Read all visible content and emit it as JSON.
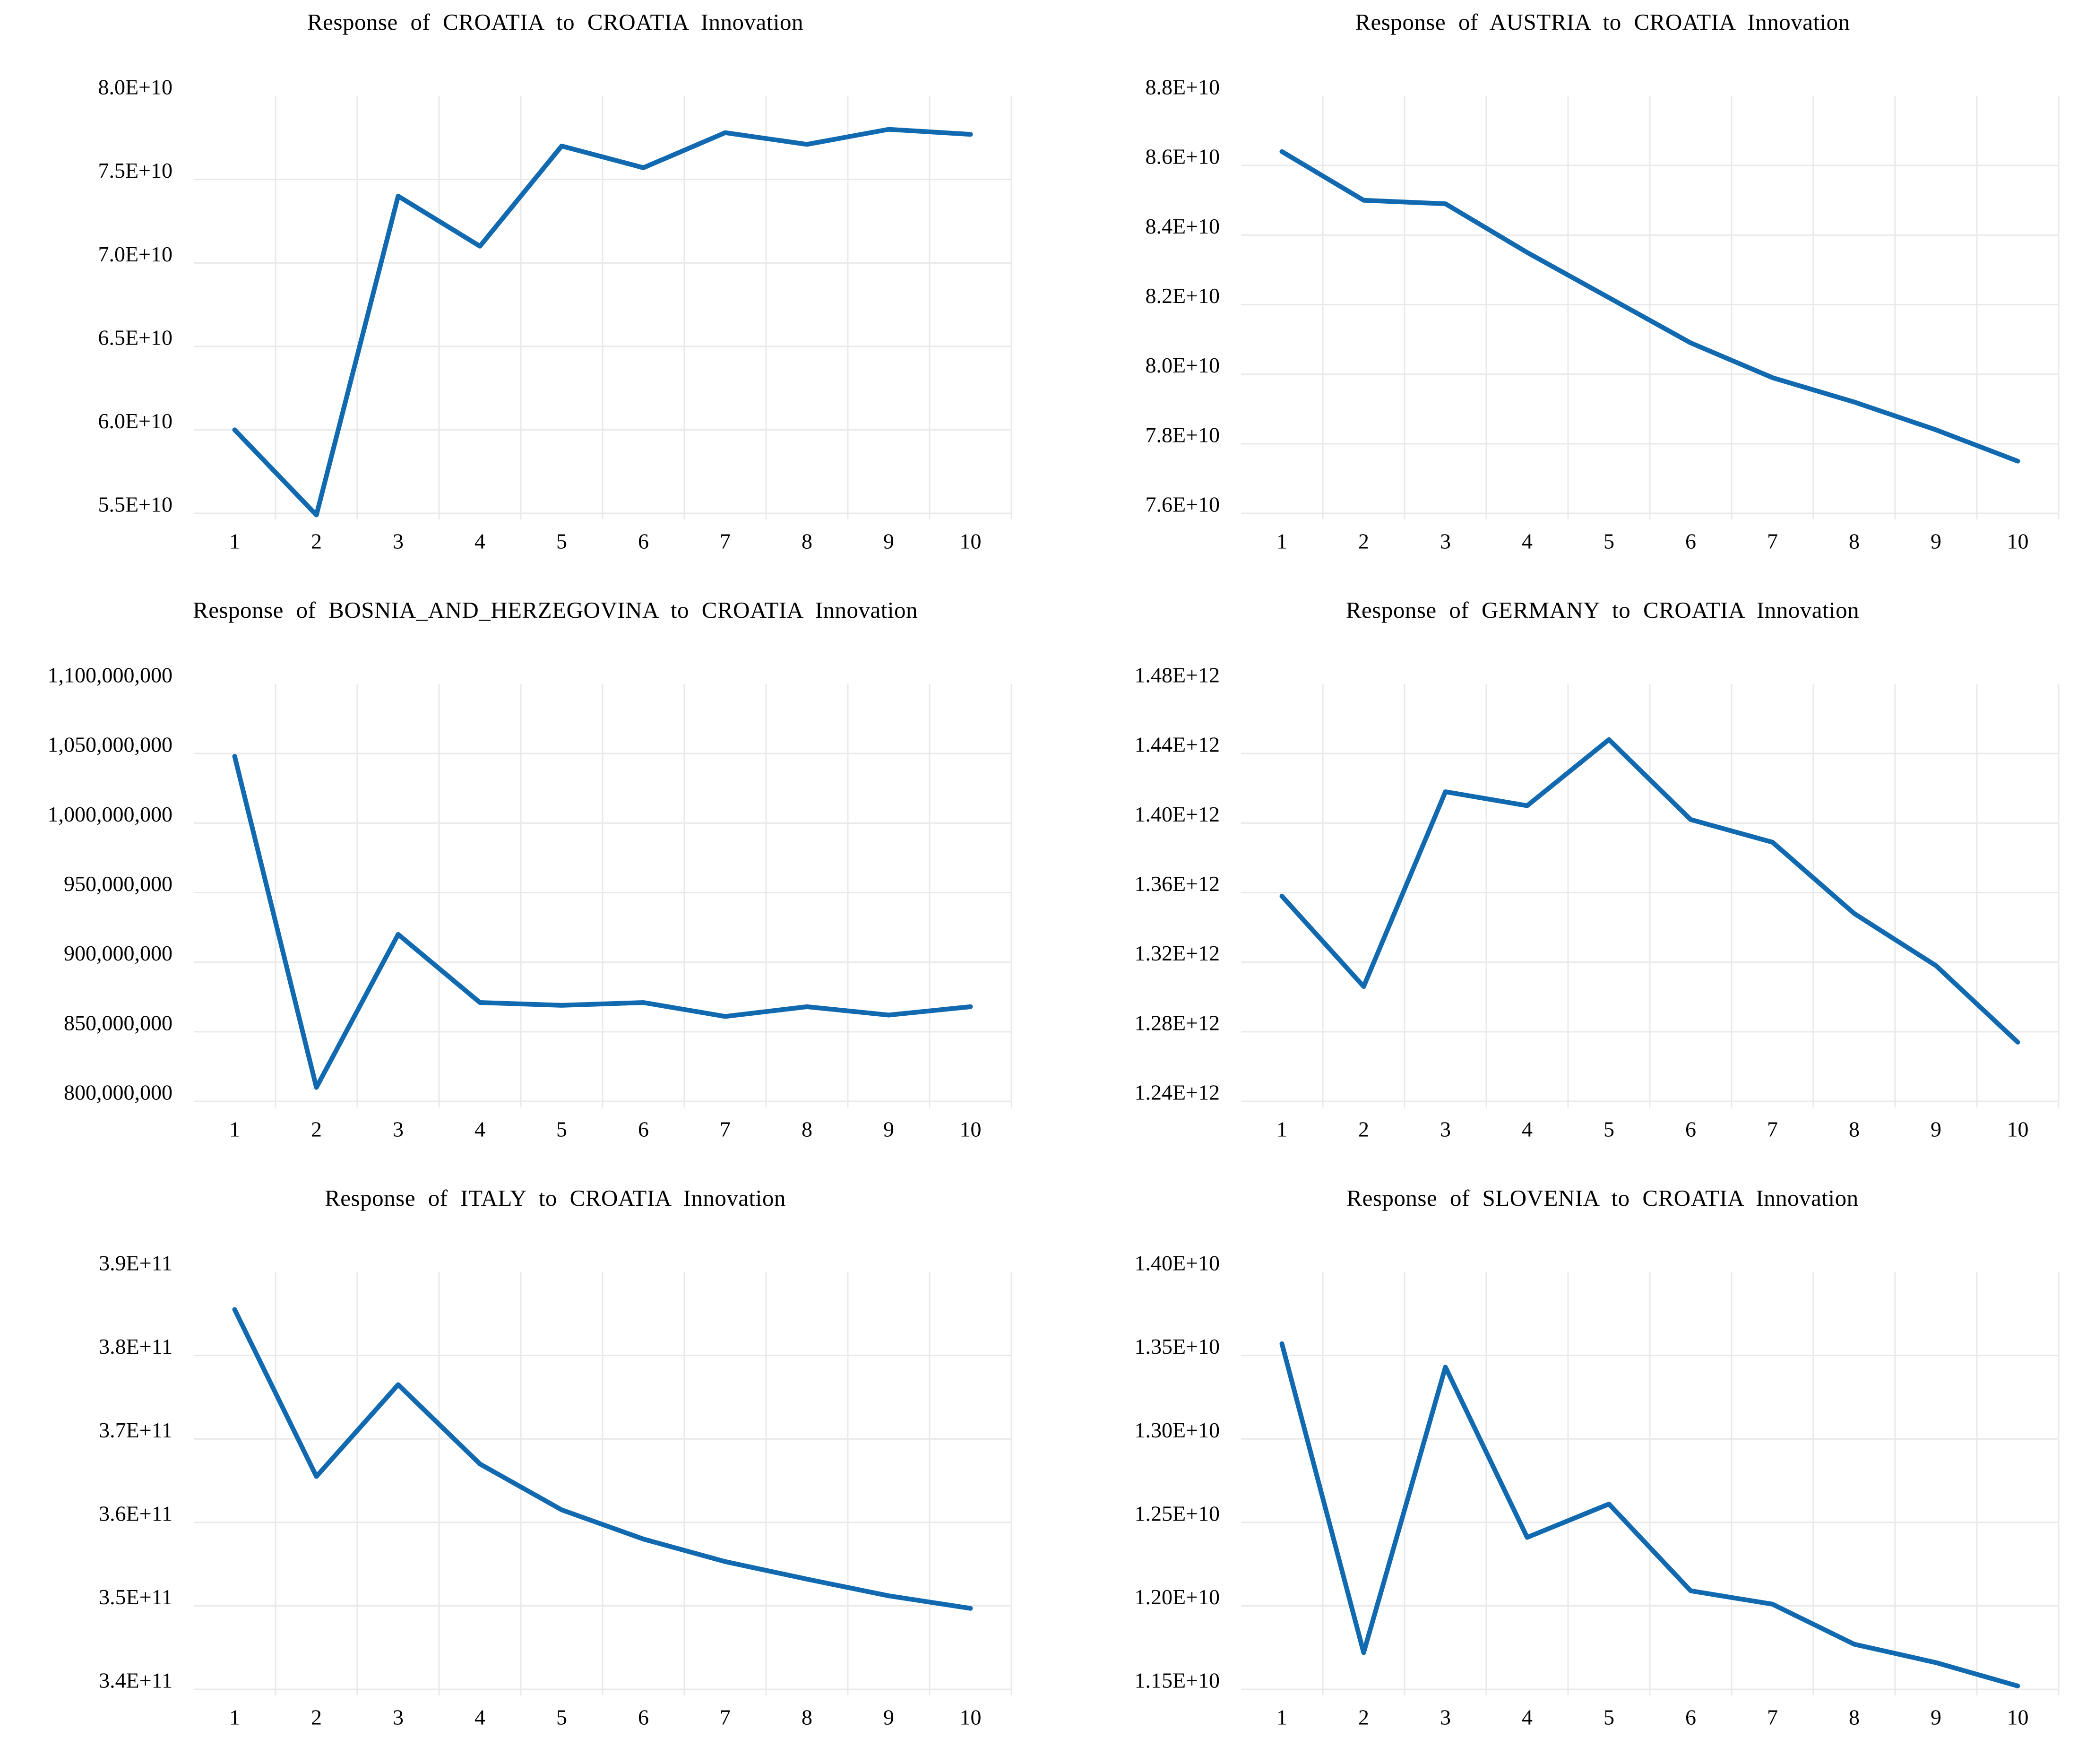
{
  "style": {
    "line_color": "#1169B0",
    "grid_color": "#E9E9E9",
    "background": "#FFFFFF",
    "text_color": "#000000"
  },
  "chart_data": [
    {
      "id": "croatia",
      "type": "line",
      "title": "Response of CROATIA to CROATIA Innovation",
      "categories": [
        "1",
        "2",
        "3",
        "4",
        "5",
        "6",
        "7",
        "8",
        "9",
        "10"
      ],
      "values": [
        60000000000.0,
        54900000000.0,
        74000000000.0,
        71000000000.0,
        77000000000.0,
        75700000000.0,
        77800000000.0,
        77100000000.0,
        78000000000.0,
        77700000000.0
      ],
      "ytick_values": [
        55000000000.0,
        60000000000.0,
        65000000000.0,
        70000000000.0,
        75000000000.0,
        80000000000.0
      ],
      "ytick_labels": [
        "5.5E+10",
        "6.0E+10",
        "6.5E+10",
        "7.0E+10",
        "7.5E+10",
        "8.0E+10"
      ],
      "ylim": [
        55000000000.0,
        80000000000.0
      ],
      "xlabel": "",
      "ylabel": "",
      "grid": true,
      "legend": "none"
    },
    {
      "id": "austria",
      "type": "line",
      "title": "Response of AUSTRIA to CROATIA Innovation",
      "categories": [
        "1",
        "2",
        "3",
        "4",
        "5",
        "6",
        "7",
        "8",
        "9",
        "10"
      ],
      "values": [
        86400000000.0,
        85000000000.0,
        84900000000.0,
        83500000000.0,
        82200000000.0,
        80900000000.0,
        79900000000.0,
        79200000000.0,
        78400000000.0,
        77500000000.0
      ],
      "ytick_values": [
        76000000000.0,
        78000000000.0,
        80000000000.0,
        82000000000.0,
        84000000000.0,
        86000000000.0,
        88000000000.0
      ],
      "ytick_labels": [
        "7.6E+10",
        "7.8E+10",
        "8.0E+10",
        "8.2E+10",
        "8.4E+10",
        "8.6E+10",
        "8.8E+10"
      ],
      "ylim": [
        76000000000.0,
        88000000000.0
      ],
      "xlabel": "",
      "ylabel": "",
      "grid": true,
      "legend": "none"
    },
    {
      "id": "bosnia_and_herzegovina",
      "type": "line",
      "title": "Response of BOSNIA_AND_HERZEGOVINA to CROATIA Innovation",
      "categories": [
        "1",
        "2",
        "3",
        "4",
        "5",
        "6",
        "7",
        "8",
        "9",
        "10"
      ],
      "values": [
        1048000000,
        810000000,
        920000000,
        871000000,
        869000000,
        871000000,
        861000000,
        868000000,
        862000000,
        868000000
      ],
      "ytick_values": [
        800000000,
        850000000,
        900000000,
        950000000,
        1000000000,
        1050000000,
        1100000000
      ],
      "ytick_labels": [
        "800,000,000",
        "850,000,000",
        "900,000,000",
        "950,000,000",
        "1,000,000,000",
        "1,050,000,000",
        "1,100,000,000"
      ],
      "ylim": [
        800000000,
        1100000000
      ],
      "xlabel": "",
      "ylabel": "",
      "grid": true,
      "legend": "none"
    },
    {
      "id": "germany",
      "type": "line",
      "title": "Response of GERMANY to CROATIA Innovation",
      "categories": [
        "1",
        "2",
        "3",
        "4",
        "5",
        "6",
        "7",
        "8",
        "9",
        "10"
      ],
      "values": [
        1358000000000.0,
        1306000000000.0,
        1418000000000.0,
        1410000000000.0,
        1448000000000.0,
        1402000000000.0,
        1389000000000.0,
        1348000000000.0,
        1318000000000.0,
        1274000000000.0
      ],
      "ytick_values": [
        1240000000000.0,
        1280000000000.0,
        1320000000000.0,
        1360000000000.0,
        1400000000000.0,
        1440000000000.0,
        1480000000000.0
      ],
      "ytick_labels": [
        "1.24E+12",
        "1.28E+12",
        "1.32E+12",
        "1.36E+12",
        "1.40E+12",
        "1.44E+12",
        "1.48E+12"
      ],
      "ylim": [
        1240000000000.0,
        1480000000000.0
      ],
      "xlabel": "",
      "ylabel": "",
      "grid": true,
      "legend": "none"
    },
    {
      "id": "italy",
      "type": "line",
      "title": "Response of ITALY to CROATIA Innovation",
      "categories": [
        "1",
        "2",
        "3",
        "4",
        "5",
        "6",
        "7",
        "8",
        "9",
        "10"
      ],
      "values": [
        385500000000.0,
        365500000000.0,
        376500000000.0,
        367000000000.0,
        361500000000.0,
        358000000000.0,
        355300000000.0,
        353200000000.0,
        351200000000.0,
        349700000000.0
      ],
      "ytick_values": [
        340000000000.0,
        350000000000.0,
        360000000000.0,
        370000000000.0,
        380000000000.0,
        390000000000.0
      ],
      "ytick_labels": [
        "3.4E+11",
        "3.5E+11",
        "3.6E+11",
        "3.7E+11",
        "3.8E+11",
        "3.9E+11"
      ],
      "ylim": [
        340000000000.0,
        390000000000.0
      ],
      "xlabel": "",
      "ylabel": "",
      "grid": true,
      "legend": "none"
    },
    {
      "id": "slovenia",
      "type": "line",
      "title": "Response of SLOVENIA to CROATIA Innovation",
      "categories": [
        "1",
        "2",
        "3",
        "4",
        "5",
        "6",
        "7",
        "8",
        "9",
        "10"
      ],
      "values": [
        13570000000.0,
        11720000000.0,
        13430000000.0,
        12410000000.0,
        12610000000.0,
        12090000000.0,
        12010000000.0,
        11770000000.0,
        11660000000.0,
        11520000000.0
      ],
      "ytick_values": [
        11500000000.0,
        12000000000.0,
        12500000000.0,
        13000000000.0,
        13500000000.0,
        14000000000.0
      ],
      "ytick_labels": [
        "1.15E+10",
        "1.20E+10",
        "1.25E+10",
        "1.30E+10",
        "1.35E+10",
        "1.40E+10"
      ],
      "ylim": [
        11500000000.0,
        14000000000.0
      ],
      "xlabel": "",
      "ylabel": "",
      "grid": true,
      "legend": "none"
    }
  ]
}
